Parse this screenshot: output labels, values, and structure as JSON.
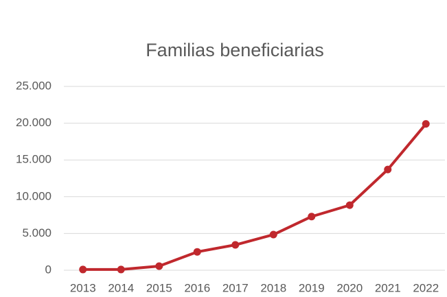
{
  "chart_data": {
    "type": "line",
    "title": "Familias beneficiarias",
    "categories": [
      "2013",
      "2014",
      "2015",
      "2016",
      "2017",
      "2018",
      "2019",
      "2020",
      "2021",
      "2022"
    ],
    "series": [
      {
        "name": "Familias beneficiarias",
        "color": "#c0282d",
        "values": [
          100,
          100,
          560,
          2500,
          3450,
          4850,
          7300,
          8850,
          13700,
          19900
        ]
      }
    ],
    "ylim": [
      0,
      25000
    ],
    "yticks": [
      0,
      {
        "value": 5000,
        "label": "5.000"
      },
      {
        "value": 10000,
        "label": "10.000"
      },
      {
        "value": 15000,
        "label": "15.000"
      },
      {
        "value": 20000,
        "label": "20.000"
      },
      {
        "value": 25000,
        "label": "25.000"
      }
    ],
    "grid": true
  }
}
